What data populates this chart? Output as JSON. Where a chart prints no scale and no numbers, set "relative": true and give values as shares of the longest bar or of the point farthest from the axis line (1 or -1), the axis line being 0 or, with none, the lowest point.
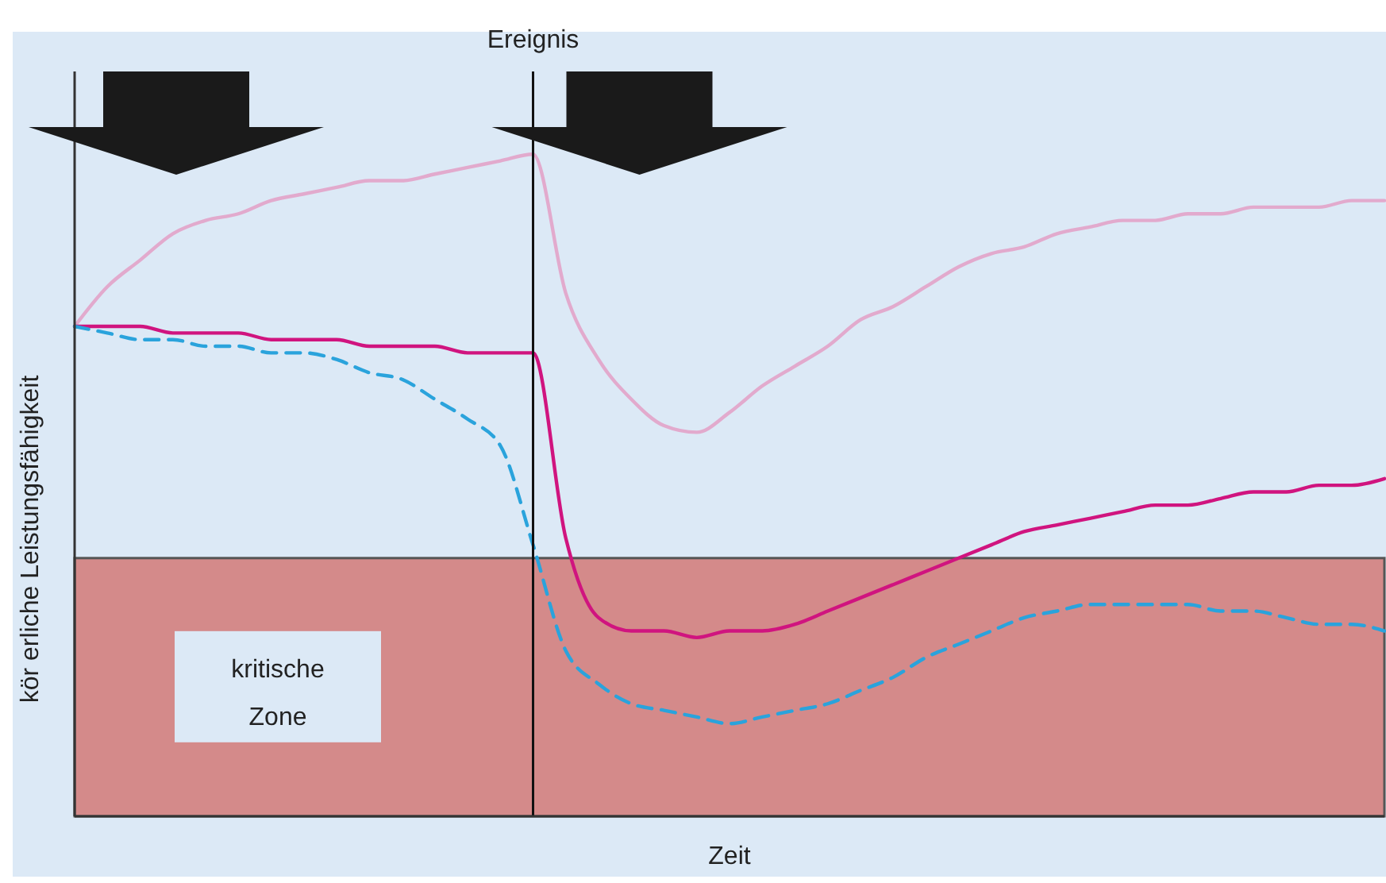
{
  "chart_data": {
    "type": "line",
    "relative": true,
    "xlabel": "Zeit",
    "ylabel": "kör erliche Leistungsfähigkeit",
    "annotations": [
      "Ereignis"
    ],
    "categories": [
      null,
      null,
      null,
      null,
      null,
      null,
      null,
      null,
      null,
      null,
      null,
      null,
      null,
      null,
      null,
      null,
      null,
      null,
      null,
      null,
      null,
      null,
      null,
      null,
      null,
      null,
      null,
      null,
      null,
      null,
      null,
      null,
      null,
      null,
      null,
      null,
      null,
      null,
      null,
      null,
      null
    ],
    "series": [
      {
        "color": "#e2aacd",
        "line_style": "solid",
        "values": [
          0.74,
          0.8,
          0.84,
          0.88,
          0.9,
          0.91,
          0.93,
          0.94,
          0.95,
          0.96,
          0.96,
          0.97,
          0.98,
          0.99,
          1.0,
          0.79,
          0.69,
          0.63,
          0.59,
          0.58,
          0.61,
          0.65,
          0.68,
          0.71,
          0.75,
          0.77,
          0.8,
          0.83,
          0.85,
          0.86,
          0.88,
          0.89,
          0.9,
          0.9,
          0.91,
          0.91,
          0.92,
          0.92,
          0.92,
          0.93,
          0.93
        ]
      },
      {
        "color": "#d0147f",
        "line_style": "solid",
        "values": [
          0.74,
          0.74,
          0.74,
          0.73,
          0.73,
          0.73,
          0.72,
          0.72,
          0.72,
          0.71,
          0.71,
          0.71,
          0.7,
          0.7,
          0.7,
          0.42,
          0.3,
          0.28,
          0.28,
          0.27,
          0.28,
          0.28,
          0.29,
          0.31,
          0.33,
          0.35,
          0.37,
          0.39,
          0.41,
          0.43,
          0.44,
          0.45,
          0.46,
          0.47,
          0.47,
          0.48,
          0.49,
          0.49,
          0.5,
          0.5,
          0.51
        ]
      },
      {
        "color": "#2aa3dc",
        "line_style": "dashed",
        "values": [
          0.74,
          0.73,
          0.72,
          0.72,
          0.71,
          0.71,
          0.7,
          0.7,
          0.69,
          0.67,
          0.66,
          0.63,
          0.6,
          0.56,
          0.41,
          0.25,
          0.2,
          0.17,
          0.16,
          0.15,
          0.14,
          0.15,
          0.16,
          0.17,
          0.19,
          0.21,
          0.24,
          0.26,
          0.28,
          0.3,
          0.31,
          0.32,
          0.32,
          0.32,
          0.32,
          0.31,
          0.31,
          0.3,
          0.29,
          0.29,
          0.28
        ]
      }
    ],
    "bands": [
      {
        "axis": "y",
        "from": 0,
        "to": 0.39,
        "label": "kritische Zone",
        "color": "#d48a8a"
      }
    ]
  }
}
